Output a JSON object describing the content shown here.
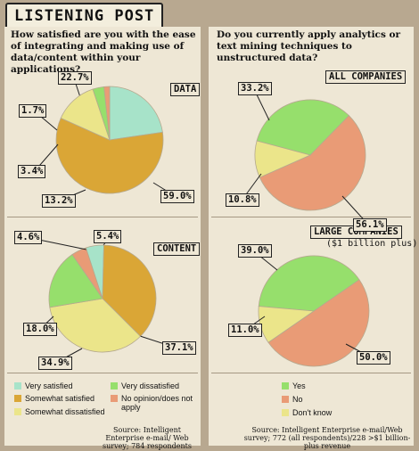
{
  "title": "LISTENING POST",
  "left": {
    "question": "How satisfied are you with the ease of integrating and making use of data/content within your applications?",
    "legend": [
      "Very satisfied",
      "Very dissatisfied",
      "Somewhat satisfied",
      "No opinion/does not apply",
      "Somewhat dissatisfied"
    ],
    "source": "Source: Intelligent Enterprise e-mail/ Web survey; 784 respondents"
  },
  "right": {
    "question": "Do you currently apply analytics or text mining techniques to unstructured data?",
    "legend": [
      "Yes",
      "No",
      "Don't know"
    ],
    "source": "Source: Intelligent Enterprise e-mail/Web survey; 772 (all respondents)/228 >$1 billion-plus revenue"
  },
  "colors": {
    "Very satisfied": "#a7e3c9",
    "Somewhat satisfied": "#daa636",
    "Somewhat dissatisfied": "#ebe58a",
    "Very dissatisfied": "#96df6c",
    "No opinion/does not apply": "#e99b76",
    "Yes": "#96df6c",
    "No": "#e99b76",
    "Don't know": "#ebe58a"
  },
  "chart_data": [
    {
      "type": "pie",
      "title": "DATA",
      "categories": [
        "Very satisfied",
        "Somewhat satisfied",
        "Somewhat dissatisfied",
        "Very dissatisfied",
        "No opinion/does not apply"
      ],
      "values": [
        22.7,
        59.0,
        13.2,
        3.4,
        1.7
      ],
      "labels": [
        "22.7%",
        "59.0%",
        "13.2%",
        "3.4%",
        "1.7%"
      ]
    },
    {
      "type": "pie",
      "title": "CONTENT",
      "categories": [
        "No opinion/does not apply",
        "Very satisfied",
        "Somewhat satisfied",
        "Somewhat dissatisfied",
        "Very dissatisfied"
      ],
      "values": [
        4.6,
        5.4,
        37.1,
        34.9,
        18.0
      ],
      "labels": [
        "4.6%",
        "5.4%",
        "37.1%",
        "34.9%",
        "18.0%"
      ]
    },
    {
      "type": "pie",
      "title": "ALL COMPANIES",
      "categories": [
        "Yes",
        "No",
        "Don't know"
      ],
      "values": [
        33.2,
        56.1,
        10.8
      ],
      "labels": [
        "33.2%",
        "56.1%",
        "10.8%"
      ]
    },
    {
      "type": "pie",
      "title": "LARGE COMPANIES",
      "subtitle": "($1 billion plus)",
      "categories": [
        "Yes",
        "No",
        "Don't know"
      ],
      "values": [
        39.0,
        50.0,
        11.0
      ],
      "labels": [
        "39.0%",
        "50.0%",
        "11.0%"
      ]
    }
  ]
}
